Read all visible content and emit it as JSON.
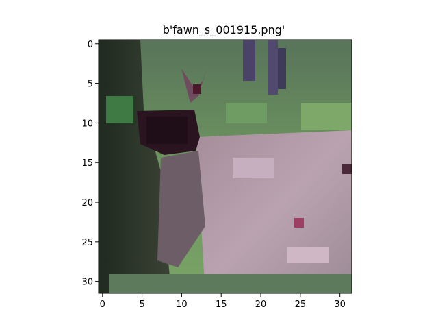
{
  "figure": {
    "title": "b'fawn_s_001915.png'"
  },
  "image": {
    "grid_size": 32,
    "dominant_colors": [
      "#5f8556",
      "#7aa468",
      "#b9a3af",
      "#2a1420",
      "#1f2b1d",
      "#4b4268"
    ]
  },
  "axes": {
    "x_ticks": [
      "0",
      "5",
      "10",
      "15",
      "20",
      "25",
      "30"
    ],
    "y_ticks": [
      "0",
      "5",
      "10",
      "15",
      "20",
      "25",
      "30"
    ]
  }
}
